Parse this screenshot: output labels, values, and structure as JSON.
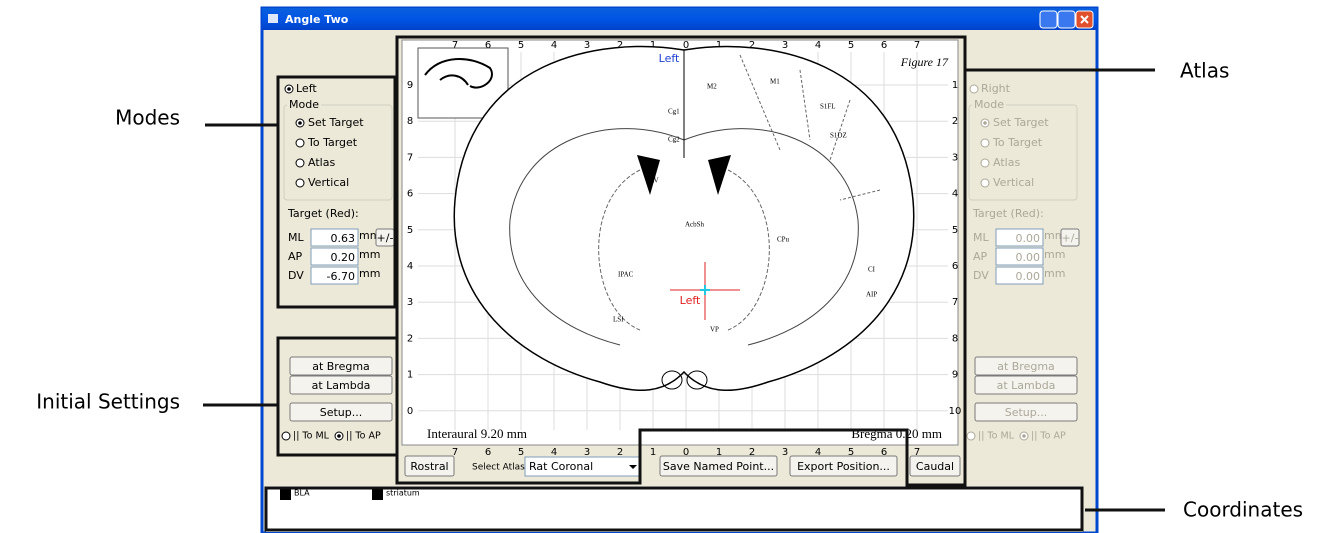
{
  "window": {
    "title": "Angle Two"
  },
  "callouts": {
    "modes": "Modes",
    "initial_settings": "Initial Settings",
    "atlas": "Atlas",
    "coordinates": "Coordinates"
  },
  "left_panel": {
    "side": "Left",
    "mode_title": "Mode",
    "modes": [
      "Set Target",
      "To Target",
      "Atlas",
      "Vertical"
    ],
    "target_title": "Target (Red):",
    "fields": [
      {
        "label": "ML",
        "value": "0.63",
        "unit": "mm"
      },
      {
        "label": "AP",
        "value": "0.20",
        "unit": "mm"
      },
      {
        "label": "DV",
        "value": "-6.70",
        "unit": "mm"
      }
    ],
    "plus_minus": "+/-",
    "buttons": [
      "at Bregma",
      "at Lambda",
      "Setup..."
    ],
    "orientation": [
      "|| To ML",
      "|| To AP"
    ]
  },
  "right_panel": {
    "side": "Right",
    "mode_title": "Mode",
    "modes": [
      "Set Target",
      "To Target",
      "Atlas",
      "Vertical"
    ],
    "target_title": "Target (Red):",
    "fields": [
      {
        "label": "ML",
        "value": "0.00",
        "unit": "mm"
      },
      {
        "label": "AP",
        "value": "0.00",
        "unit": "mm"
      },
      {
        "label": "DV",
        "value": "0.00",
        "unit": "mm"
      }
    ],
    "plus_minus": "+/-",
    "buttons": [
      "at Bregma",
      "at Lambda",
      "Setup..."
    ],
    "orientation": [
      "|| To ML",
      "|| To AP"
    ]
  },
  "atlas": {
    "top_ticks": [
      7,
      6,
      5,
      4,
      3,
      2,
      1,
      0,
      1,
      2,
      3,
      4,
      5,
      6,
      7
    ],
    "left_ticks": [
      9,
      8,
      7,
      6,
      5,
      4,
      3,
      2,
      1,
      0
    ],
    "right_ticks": [
      1,
      2,
      3,
      4,
      5,
      6,
      7,
      8,
      9,
      10
    ],
    "bottom_ticks": [
      7,
      6,
      5,
      4,
      3,
      2,
      1,
      0,
      1,
      2,
      3,
      4,
      5,
      6,
      7
    ],
    "figure": "Figure 17",
    "midline_label": "Left",
    "target_label": "Left",
    "interaural": "Interaural 9.20 mm",
    "bregma": "Bregma 0.20 mm",
    "regions": [
      "M2",
      "M1",
      "S1FL",
      "S1DZ",
      "Cg1",
      "Cg2",
      "CPu",
      "LV",
      "AcbSh",
      "IPAC",
      "CI",
      "AIP",
      "LSI",
      "VP"
    ]
  },
  "controls": {
    "rostral": "Rostral",
    "select_atlas": "Select Atlas",
    "atlas_choice": "Rat Coronal",
    "save": "Save Named Point...",
    "export": "Export Position...",
    "caudal": "Caudal"
  },
  "legend": [
    "BLA",
    "striatum"
  ]
}
